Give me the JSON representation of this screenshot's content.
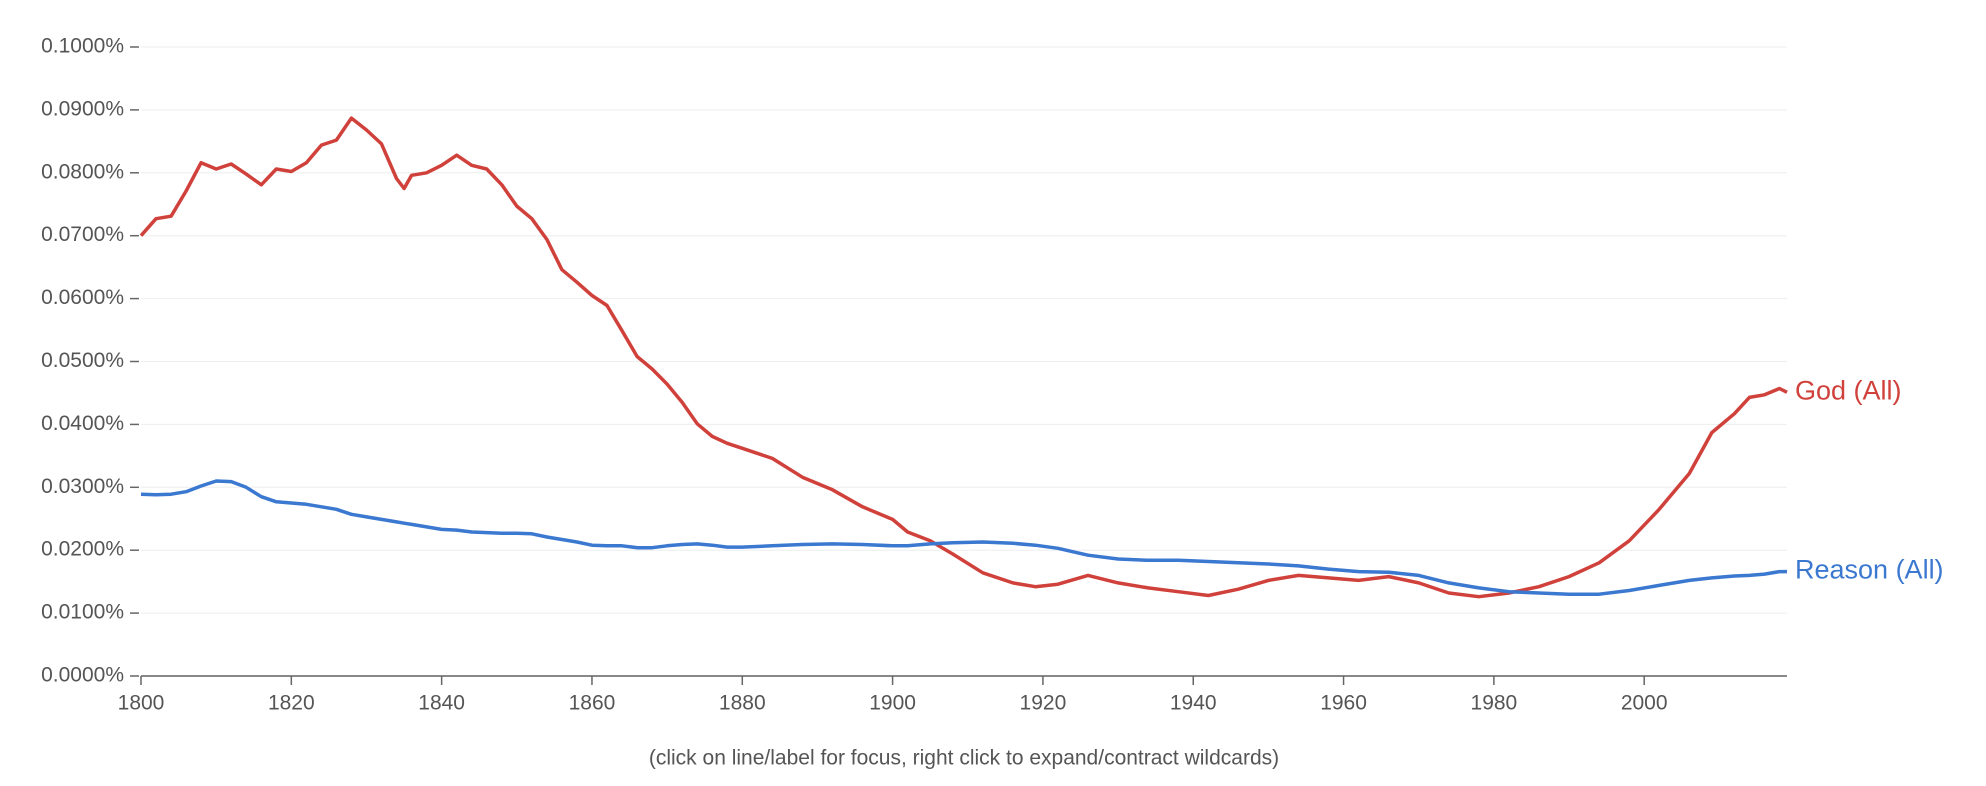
{
  "chart_data": {
    "type": "line",
    "footnote": "(click on line/label for focus, right click to expand/contract wildcards)",
    "x": [
      1800,
      1802,
      1804,
      1806,
      1808,
      1810,
      1812,
      1814,
      1816,
      1818,
      1820,
      1822,
      1824,
      1826,
      1828,
      1830,
      1832,
      1834,
      1835,
      1836,
      1838,
      1840,
      1842,
      1844,
      1846,
      1848,
      1850,
      1852,
      1854,
      1856,
      1858,
      1860,
      1862,
      1864,
      1866,
      1868,
      1870,
      1872,
      1874,
      1876,
      1878,
      1880,
      1884,
      1888,
      1892,
      1896,
      1900,
      1902,
      1905,
      1908,
      1912,
      1916,
      1919,
      1922,
      1926,
      1930,
      1934,
      1938,
      1942,
      1946,
      1950,
      1954,
      1958,
      1962,
      1966,
      1970,
      1974,
      1978,
      1982,
      1986,
      1990,
      1994,
      1998,
      2002,
      2006,
      2009,
      2012,
      2014,
      2016,
      2018,
      2019
    ],
    "series": [
      {
        "name": "God (All)",
        "color": "#d0413b",
        "values": [
          0.07,
          0.0727,
          0.0731,
          0.0771,
          0.0816,
          0.0806,
          0.0814,
          0.0798,
          0.0781,
          0.0806,
          0.0802,
          0.0816,
          0.0844,
          0.0852,
          0.0887,
          0.0868,
          0.0846,
          0.0791,
          0.0775,
          0.0796,
          0.08,
          0.0812,
          0.0828,
          0.0812,
          0.0806,
          0.0781,
          0.0747,
          0.0727,
          0.0694,
          0.0646,
          0.0626,
          0.0605,
          0.0589,
          0.0549,
          0.0508,
          0.0488,
          0.0464,
          0.0435,
          0.0401,
          0.0381,
          0.037,
          0.0362,
          0.0346,
          0.0316,
          0.0296,
          0.0269,
          0.0249,
          0.0229,
          0.0215,
          0.0194,
          0.0164,
          0.0148,
          0.0142,
          0.0146,
          0.016,
          0.0148,
          0.014,
          0.0134,
          0.0128,
          0.0138,
          0.0152,
          0.016,
          0.0156,
          0.0152,
          0.0158,
          0.0148,
          0.0132,
          0.0126,
          0.0132,
          0.0142,
          0.0158,
          0.018,
          0.0215,
          0.0265,
          0.0322,
          0.0387,
          0.0417,
          0.0443,
          0.0447,
          0.0457,
          0.0451
        ]
      },
      {
        "name": "Reason (All)",
        "color": "#3b78d0",
        "values": [
          0.0289,
          0.0288,
          0.0289,
          0.0293,
          0.0302,
          0.031,
          0.0309,
          0.03,
          0.0285,
          0.0277,
          0.0275,
          0.0273,
          0.0269,
          0.0265,
          0.0257,
          0.0253,
          0.0249,
          0.0245,
          0.0243,
          0.0241,
          0.0237,
          0.0233,
          0.0232,
          0.0229,
          0.0228,
          0.0227,
          0.0227,
          0.0226,
          0.0221,
          0.0217,
          0.0213,
          0.0208,
          0.0207,
          0.0207,
          0.0204,
          0.0204,
          0.0207,
          0.0209,
          0.021,
          0.0208,
          0.0205,
          0.0205,
          0.0207,
          0.0209,
          0.021,
          0.0209,
          0.0207,
          0.0207,
          0.021,
          0.0212,
          0.0213,
          0.0211,
          0.0208,
          0.0203,
          0.0192,
          0.0186,
          0.0184,
          0.0184,
          0.0182,
          0.018,
          0.0178,
          0.0175,
          0.017,
          0.0166,
          0.0165,
          0.016,
          0.0148,
          0.014,
          0.0134,
          0.0132,
          0.013,
          0.013,
          0.0136,
          0.0144,
          0.0152,
          0.0156,
          0.0159,
          0.016,
          0.0162,
          0.0166,
          0.0166
        ]
      }
    ],
    "xlim": [
      1800,
      2019
    ],
    "xticks": [
      1800,
      1820,
      1840,
      1860,
      1880,
      1900,
      1920,
      1940,
      1960,
      1980,
      2000
    ],
    "ylim": [
      0,
      0.1
    ],
    "yticks": [
      {
        "value": 0,
        "label": "0.0000%"
      },
      {
        "value": 0.01,
        "label": "0.0100%"
      },
      {
        "value": 0.02,
        "label": "0.0200%"
      },
      {
        "value": 0.03,
        "label": "0.0300%"
      },
      {
        "value": 0.04,
        "label": "0.0400%"
      },
      {
        "value": 0.05,
        "label": "0.0500%"
      },
      {
        "value": 0.06,
        "label": "0.0600%"
      },
      {
        "value": 0.07,
        "label": "0.0700%"
      },
      {
        "value": 0.08,
        "label": "0.0800%"
      },
      {
        "value": 0.09,
        "label": "0.0900%"
      },
      {
        "value": 0.1,
        "label": "0.1000%"
      }
    ],
    "grid": true
  }
}
